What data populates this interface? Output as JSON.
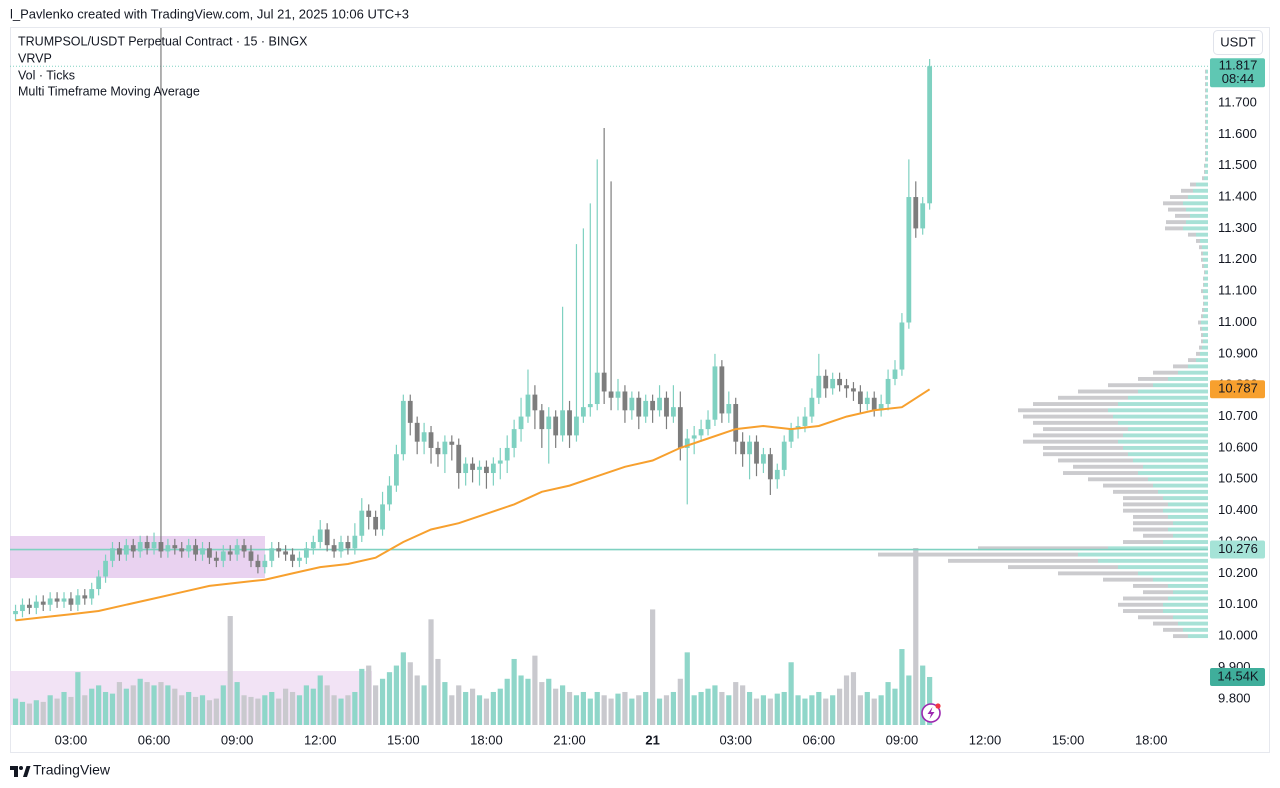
{
  "header": "l_Pavlenko created with TradingView.com, Jul 21, 2025 10:06 UTC+3",
  "brand": "TradingView",
  "chart_data": {
    "type": "candlestick",
    "title": "TRUMPSOL/USDT Perpetual Contract · 15 · BINGX",
    "indicators": [
      "VRVP",
      "Vol · Ticks"
    ],
    "currency": "USDT",
    "countdown": "08:44",
    "up_color": "#7fd1c1",
    "down_color": "#7d7d7d",
    "volume_up_color": "#8fd6c9",
    "volume_down_color": "#c9c9ce",
    "xlim": [
      0.8,
      44.05
    ],
    "ylim": [
      9.707,
      11.939
    ],
    "xticks": [
      {
        "value": 3,
        "label": "03:00"
      },
      {
        "value": 6,
        "label": "06:00"
      },
      {
        "value": 9,
        "label": "09:00"
      },
      {
        "value": 12,
        "label": "12:00"
      },
      {
        "value": 15,
        "label": "15:00"
      },
      {
        "value": 18,
        "label": "18:00"
      },
      {
        "value": 21,
        "label": "21:00"
      },
      {
        "value": 24,
        "label": "21"
      },
      {
        "value": 27,
        "label": "03:00"
      },
      {
        "value": 30,
        "label": "06:00"
      },
      {
        "value": 33,
        "label": "09:00"
      },
      {
        "value": 36,
        "label": "12:00"
      },
      {
        "value": 39,
        "label": "15:00"
      },
      {
        "value": 42,
        "label": "18:00"
      }
    ],
    "yticks": [
      {
        "value": 9.8,
        "label": "9.800"
      },
      {
        "value": 9.9,
        "label": "9.900"
      },
      {
        "value": 10,
        "label": "10.000"
      },
      {
        "value": 10.1,
        "label": "10.100"
      },
      {
        "value": 10.2,
        "label": "10.200"
      },
      {
        "value": 10.3,
        "label": "10.300"
      },
      {
        "value": 10.4,
        "label": "10.400"
      },
      {
        "value": 10.5,
        "label": "10.500"
      },
      {
        "value": 10.6,
        "label": "10.600"
      },
      {
        "value": 10.7,
        "label": "10.700"
      },
      {
        "value": 10.8,
        "label": "10.800"
      },
      {
        "value": 10.9,
        "label": "10.900"
      },
      {
        "value": 11,
        "label": "11.000"
      },
      {
        "value": 11.1,
        "label": "11.100"
      },
      {
        "value": 11.2,
        "label": "11.200"
      },
      {
        "value": 11.3,
        "label": "11.300"
      },
      {
        "value": 11.4,
        "label": "11.400"
      },
      {
        "value": 11.5,
        "label": "11.500"
      },
      {
        "value": 11.6,
        "label": "11.600"
      },
      {
        "value": 11.7,
        "label": "11.700"
      }
    ],
    "x": [
      1,
      1.25,
      1.5,
      1.75,
      2,
      2.25,
      2.5,
      2.75,
      3,
      3.25,
      3.5,
      3.75,
      4,
      4.25,
      4.5,
      4.75,
      5,
      5.25,
      5.5,
      5.75,
      6,
      6.25,
      6.5,
      6.75,
      7,
      7.25,
      7.5,
      7.75,
      8,
      8.25,
      8.5,
      8.75,
      9,
      9.25,
      9.5,
      9.75,
      10,
      10.25,
      10.5,
      10.75,
      11,
      11.25,
      11.5,
      11.75,
      12,
      12.25,
      12.5,
      12.75,
      13,
      13.25,
      13.5,
      13.75,
      14,
      14.25,
      14.5,
      14.75,
      15,
      15.25,
      15.5,
      15.75,
      16,
      16.25,
      16.5,
      16.75,
      17,
      17.25,
      17.5,
      17.75,
      18,
      18.25,
      18.5,
      18.75,
      19,
      19.25,
      19.5,
      19.75,
      20,
      20.25,
      20.5,
      20.75,
      21,
      21.25,
      21.5,
      21.75,
      22,
      22.25,
      22.5,
      22.75,
      23,
      23.25,
      23.5,
      23.75,
      24,
      24.25,
      24.5,
      24.75,
      25,
      25.25,
      25.5,
      25.75,
      26,
      26.25,
      26.5,
      26.75,
      27,
      27.25,
      27.5,
      27.75,
      28,
      28.25,
      28.5,
      28.75,
      29,
      29.25,
      29.5,
      29.75,
      30,
      30.25,
      30.5,
      30.75,
      31,
      31.25,
      31.5,
      31.75,
      32,
      32.25,
      32.5,
      32.75,
      33,
      33.25,
      33.5,
      33.75,
      34
    ],
    "open": [
      10.07,
      10.08,
      10.1,
      10.09,
      10.11,
      10.1,
      10.12,
      10.11,
      10.12,
      10.1,
      10.13,
      10.12,
      10.15,
      10.19,
      10.24,
      10.28,
      10.26,
      10.29,
      10.27,
      10.3,
      10.28,
      10.3,
      10.27,
      10.29,
      10.28,
      10.27,
      10.29,
      10.26,
      10.28,
      10.25,
      10.24,
      10.27,
      10.26,
      10.29,
      10.27,
      10.24,
      10.22,
      10.24,
      10.28,
      10.27,
      10.26,
      10.24,
      10.25,
      10.28,
      10.3,
      10.34,
      10.29,
      10.27,
      10.3,
      10.28,
      10.32,
      10.4,
      10.38,
      10.34,
      10.42,
      10.48,
      10.58,
      10.75,
      10.68,
      10.62,
      10.65,
      10.6,
      10.58,
      10.62,
      10.61,
      10.52,
      10.55,
      10.53,
      10.54,
      10.52,
      10.55,
      10.56,
      10.6,
      10.66,
      10.7,
      10.77,
      10.72,
      10.66,
      10.7,
      10.64,
      10.72,
      10.64,
      10.7,
      10.73,
      10.74,
      10.84,
      10.78,
      10.76,
      10.78,
      10.72,
      10.76,
      10.7,
      10.75,
      10.72,
      10.76,
      10.7,
      10.73,
      10.6,
      10.63,
      10.64,
      10.66,
      10.69,
      10.86,
      10.71,
      10.74,
      10.62,
      10.58,
      10.62,
      10.55,
      10.58,
      10.5,
      10.53,
      10.62,
      10.66,
      10.67,
      10.7,
      10.76,
      10.83,
      10.79,
      10.82,
      10.8,
      10.79,
      10.78,
      10.74,
      10.76,
      10.72,
      10.74,
      10.82,
      10.85,
      11.0,
      11.4,
      11.3,
      11.38
    ],
    "high": [
      10.1,
      10.12,
      10.12,
      10.13,
      10.13,
      10.14,
      10.14,
      10.14,
      10.14,
      10.15,
      10.15,
      10.17,
      10.21,
      10.26,
      10.3,
      10.3,
      10.31,
      10.31,
      10.32,
      10.32,
      10.33,
      11.94,
      10.31,
      10.31,
      10.3,
      10.31,
      10.31,
      10.3,
      10.3,
      10.27,
      10.29,
      10.29,
      10.31,
      10.31,
      10.29,
      10.26,
      10.26,
      10.3,
      10.3,
      10.29,
      10.28,
      10.27,
      10.3,
      10.32,
      10.37,
      10.36,
      10.31,
      10.32,
      10.32,
      10.36,
      10.44,
      10.42,
      10.4,
      10.46,
      10.51,
      10.61,
      10.77,
      10.77,
      10.7,
      10.68,
      10.67,
      10.62,
      10.64,
      10.64,
      10.63,
      10.57,
      10.57,
      10.56,
      10.56,
      10.57,
      10.6,
      10.64,
      10.69,
      10.76,
      10.85,
      10.8,
      10.74,
      10.73,
      10.72,
      11.05,
      10.75,
      11.25,
      11.3,
      11.38,
      11.52,
      11.62,
      11.45,
      10.82,
      10.8,
      10.78,
      10.78,
      10.77,
      10.77,
      10.8,
      10.78,
      10.8,
      10.78,
      10.66,
      10.67,
      10.69,
      10.72,
      10.9,
      10.88,
      10.78,
      10.76,
      10.65,
      10.64,
      10.64,
      10.6,
      10.6,
      10.55,
      10.64,
      10.68,
      10.7,
      10.73,
      10.79,
      10.9,
      10.85,
      10.84,
      10.84,
      10.82,
      10.81,
      10.8,
      10.78,
      10.78,
      10.77,
      10.85,
      10.88,
      11.03,
      11.52,
      11.45,
      11.4,
      11.84
    ],
    "low": [
      10.05,
      10.06,
      10.07,
      10.07,
      10.08,
      10.08,
      10.09,
      10.09,
      10.08,
      10.08,
      10.1,
      10.1,
      10.13,
      10.17,
      10.22,
      10.24,
      10.24,
      10.25,
      10.25,
      10.26,
      10.26,
      10.25,
      10.25,
      10.26,
      10.25,
      10.25,
      10.24,
      10.24,
      10.23,
      10.22,
      10.22,
      10.24,
      10.24,
      10.25,
      10.22,
      10.2,
      10.2,
      10.22,
      10.25,
      10.24,
      10.22,
      10.22,
      10.23,
      10.26,
      10.28,
      10.27,
      10.25,
      10.25,
      10.26,
      10.26,
      10.3,
      10.34,
      10.32,
      10.32,
      10.4,
      10.46,
      10.56,
      10.64,
      10.58,
      10.58,
      10.55,
      10.54,
      10.52,
      10.56,
      10.47,
      10.48,
      10.49,
      10.48,
      10.47,
      10.48,
      10.5,
      10.52,
      10.57,
      10.62,
      10.68,
      10.66,
      10.6,
      10.55,
      10.6,
      10.62,
      10.6,
      10.62,
      10.68,
      10.7,
      10.72,
      10.74,
      10.72,
      10.72,
      10.68,
      10.69,
      10.66,
      10.68,
      10.68,
      10.7,
      10.66,
      10.68,
      10.56,
      10.42,
      10.58,
      10.62,
      10.64,
      10.67,
      10.68,
      10.68,
      10.58,
      10.54,
      10.5,
      10.51,
      10.52,
      10.45,
      10.47,
      10.51,
      10.6,
      10.63,
      10.65,
      10.68,
      10.74,
      10.76,
      10.77,
      10.78,
      10.76,
      10.75,
      10.71,
      10.72,
      10.7,
      10.7,
      10.72,
      10.8,
      10.83,
      10.98,
      11.27,
      11.28,
      11.36
    ],
    "close": [
      10.08,
      10.1,
      10.09,
      10.11,
      10.1,
      10.12,
      10.11,
      10.12,
      10.1,
      10.13,
      10.12,
      10.15,
      10.19,
      10.24,
      10.28,
      10.26,
      10.29,
      10.27,
      10.3,
      10.28,
      10.3,
      10.27,
      10.29,
      10.28,
      10.27,
      10.29,
      10.26,
      10.28,
      10.25,
      10.24,
      10.27,
      10.26,
      10.29,
      10.27,
      10.24,
      10.22,
      10.24,
      10.28,
      10.27,
      10.26,
      10.24,
      10.25,
      10.28,
      10.3,
      10.34,
      10.29,
      10.27,
      10.3,
      10.28,
      10.32,
      10.4,
      10.38,
      10.34,
      10.42,
      10.48,
      10.58,
      10.75,
      10.68,
      10.62,
      10.65,
      10.6,
      10.58,
      10.62,
      10.61,
      10.52,
      10.55,
      10.53,
      10.54,
      10.52,
      10.55,
      10.56,
      10.6,
      10.66,
      10.7,
      10.77,
      10.72,
      10.66,
      10.7,
      10.64,
      10.72,
      10.64,
      10.7,
      10.73,
      10.74,
      10.84,
      10.78,
      10.76,
      10.78,
      10.72,
      10.76,
      10.7,
      10.75,
      10.72,
      10.76,
      10.7,
      10.73,
      10.6,
      10.63,
      10.64,
      10.66,
      10.69,
      10.86,
      10.71,
      10.74,
      10.62,
      10.58,
      10.62,
      10.55,
      10.58,
      10.5,
      10.53,
      10.62,
      10.66,
      10.67,
      10.7,
      10.76,
      10.83,
      10.79,
      10.82,
      10.8,
      10.79,
      10.78,
      10.74,
      10.76,
      10.72,
      10.74,
      10.82,
      10.85,
      11.0,
      11.4,
      11.3,
      11.38,
      11.817
    ],
    "volume": [
      8000,
      7000,
      6500,
      7500,
      7000,
      9000,
      8000,
      10000,
      8500,
      16000,
      9000,
      11000,
      12000,
      10000,
      9500,
      13000,
      11000,
      12000,
      14000,
      13000,
      12000,
      13000,
      12000,
      11000,
      9000,
      10000,
      8500,
      9000,
      7500,
      8000,
      12000,
      33000,
      13000,
      9000,
      8500,
      8000,
      9000,
      10000,
      8000,
      11000,
      10000,
      9000,
      12000,
      11000,
      15000,
      12000,
      9000,
      8000,
      9000,
      10000,
      17000,
      18000,
      12000,
      14000,
      16000,
      18000,
      22000,
      19000,
      15000,
      12000,
      32000,
      20000,
      13000,
      9000,
      12000,
      10000,
      11000,
      9000,
      8000,
      10000,
      11000,
      14000,
      20000,
      15000,
      14000,
      21000,
      13000,
      14000,
      11000,
      12000,
      10000,
      9000,
      10000,
      8000,
      10000,
      9000,
      8000,
      9500,
      10000,
      8000,
      9000,
      10000,
      35000,
      8000,
      9000,
      10000,
      14000,
      22000,
      9000,
      10000,
      11000,
      12000,
      10000,
      9000,
      13000,
      12000,
      10000,
      8000,
      9000,
      8000,
      9500,
      10000,
      19000,
      9000,
      8000,
      9000,
      10000,
      8000,
      9000,
      11000,
      15000,
      16000,
      9000,
      10000,
      8000,
      9000,
      13000,
      11000,
      23000,
      15000,
      53600,
      18000,
      14540
    ],
    "volume_label": "14.54K",
    "ma": {
      "name": "Multi Timeframe Moving Average",
      "color": "#f7a02e",
      "x": [
        1,
        2,
        3,
        4,
        5,
        6,
        7,
        8,
        9,
        10,
        11,
        12,
        13,
        14,
        15,
        16,
        17,
        18,
        19,
        20,
        21,
        22,
        23,
        24,
        25,
        26,
        27,
        28,
        29,
        30,
        31,
        32,
        33,
        34
      ],
      "values": [
        10.05,
        10.06,
        10.07,
        10.08,
        10.1,
        10.12,
        10.14,
        10.16,
        10.17,
        10.18,
        10.2,
        10.22,
        10.23,
        10.25,
        10.3,
        10.34,
        10.36,
        10.39,
        10.42,
        10.46,
        10.48,
        10.51,
        10.54,
        10.56,
        10.6,
        10.63,
        10.66,
        10.67,
        10.66,
        10.67,
        10.7,
        10.72,
        10.73,
        10.787
      ]
    },
    "hline": 10.276,
    "profile": {
      "price": [
        10,
        10.02,
        10.04,
        10.06,
        10.08,
        10.1,
        10.12,
        10.14,
        10.16,
        10.18,
        10.2,
        10.22,
        10.24,
        10.26,
        10.28,
        10.3,
        10.32,
        10.34,
        10.36,
        10.38,
        10.4,
        10.42,
        10.44,
        10.46,
        10.48,
        10.5,
        10.52,
        10.54,
        10.56,
        10.58,
        10.6,
        10.62,
        10.64,
        10.66,
        10.68,
        10.7,
        10.72,
        10.74,
        10.76,
        10.78,
        10.8,
        10.82,
        10.84,
        10.86,
        10.88,
        10.9,
        10.92,
        10.94,
        10.96,
        10.98,
        11,
        11.02,
        11.04,
        11.06,
        11.08,
        11.1,
        11.12,
        11.14,
        11.16,
        11.18,
        11.2,
        11.22,
        11.24,
        11.26,
        11.28,
        11.3,
        11.32,
        11.34,
        11.36,
        11.38,
        11.4,
        11.42,
        11.44,
        11.46,
        11.48,
        11.5,
        11.52,
        11.54,
        11.56,
        11.58,
        11.6,
        11.62,
        11.64,
        11.66,
        11.68,
        11.7,
        11.72,
        11.74,
        11.76,
        11.78,
        11.8
      ],
      "up": [
        20,
        25,
        30,
        35,
        45,
        45,
        40,
        35,
        40,
        55,
        70,
        90,
        110,
        130,
        100,
        45,
        35,
        40,
        35,
        40,
        45,
        40,
        45,
        50,
        55,
        60,
        70,
        65,
        75,
        80,
        85,
        90,
        85,
        80,
        90,
        95,
        100,
        90,
        80,
        70,
        55,
        40,
        30,
        20,
        12,
        8,
        6,
        5,
        5,
        6,
        7,
        5,
        4,
        4,
        4,
        5,
        4,
        4,
        3,
        4,
        5,
        5,
        6,
        8,
        12,
        25,
        22,
        18,
        22,
        25,
        20,
        15,
        12,
        4,
        3,
        3,
        2,
        2,
        2,
        2,
        2,
        2,
        2,
        2,
        2,
        2,
        2,
        2,
        2,
        2,
        2
      ],
      "down": [
        15,
        20,
        25,
        35,
        40,
        45,
        45,
        30,
        35,
        50,
        80,
        110,
        150,
        200,
        130,
        40,
        30,
        35,
        40,
        35,
        40,
        45,
        40,
        45,
        50,
        60,
        75,
        70,
        75,
        85,
        80,
        95,
        90,
        85,
        85,
        90,
        90,
        85,
        70,
        60,
        45,
        30,
        25,
        15,
        8,
        4,
        3,
        2,
        2,
        2,
        3,
        2,
        2,
        1,
        1,
        2,
        1,
        1,
        1,
        2,
        2,
        2,
        3,
        4,
        8,
        18,
        20,
        15,
        18,
        20,
        18,
        12,
        6,
        2,
        1,
        1,
        1,
        1,
        1,
        1,
        1,
        1,
        1,
        1,
        1,
        1,
        1,
        1,
        1,
        1,
        1
      ],
      "up_color": "rgba(95,200,180,0.55)",
      "down_color": "rgba(160,160,165,0.55)"
    }
  }
}
